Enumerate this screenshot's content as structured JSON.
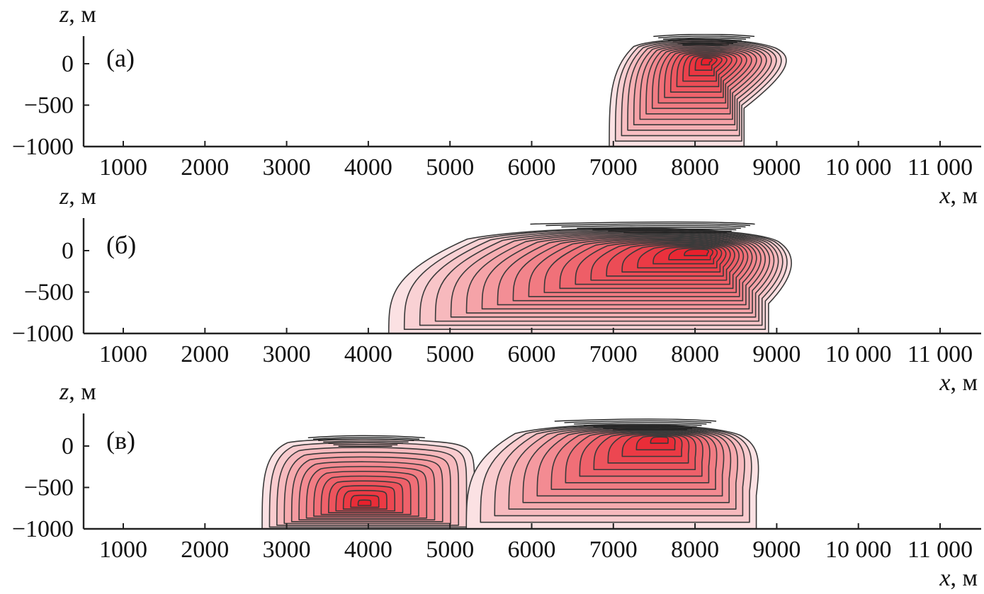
{
  "chart_data": [
    {
      "type": "contour",
      "panel_label": "(а)",
      "xlabel": "x, м",
      "ylabel": "z, м",
      "x_ticks": [
        "1000",
        "2000",
        "3000",
        "4000",
        "5000",
        "6000",
        "7000",
        "8000",
        "9000",
        "10 000",
        "11 000"
      ],
      "x_tick_values": [
        1000,
        2000,
        3000,
        4000,
        5000,
        6000,
        7000,
        8000,
        9000,
        10000,
        11000
      ],
      "y_ticks": [
        "0",
        "−500",
        "−1000"
      ],
      "y_tick_values": [
        0,
        -500,
        -1000
      ],
      "xlim": [
        500,
        11400
      ],
      "ylim": [
        -1000,
        360
      ],
      "colormap": [
        "#fbe1e3",
        "#e8202c"
      ],
      "contour_color": "#3a3a3a",
      "x_label_shown": true,
      "blobs": [
        {
          "cx": 8150,
          "cz": 50,
          "top": 330,
          "xl": 6950,
          "xr": 9200,
          "skew": 0.25,
          "x_left_bottom": 6950,
          "x_right_bottom": 8600,
          "n_levels": 16
        }
      ]
    },
    {
      "type": "contour",
      "panel_label": "(б)",
      "xlabel": "x, м",
      "ylabel": "z, м",
      "x_ticks": [
        "1000",
        "2000",
        "3000",
        "4000",
        "5000",
        "6000",
        "7000",
        "8000",
        "9000",
        "10 000",
        "11 000"
      ],
      "x_tick_values": [
        1000,
        2000,
        3000,
        4000,
        5000,
        6000,
        7000,
        8000,
        9000,
        10000,
        11000
      ],
      "y_ticks": [
        "0",
        "−500",
        "−1000"
      ],
      "y_tick_values": [
        0,
        -500,
        -1000
      ],
      "xlim": [
        500,
        11400
      ],
      "ylim": [
        -1000,
        360
      ],
      "colormap": [
        "#fbe1e3",
        "#e8202c"
      ],
      "contour_color": "#3a3a3a",
      "x_label_shown": true,
      "blobs": [
        {
          "cx": 8100,
          "cz": 0,
          "top": 320,
          "xl": 4250,
          "xr": 9250,
          "skew": 0.55,
          "x_left_bottom": 4250,
          "x_right_bottom": 8900,
          "n_levels": 20
        }
      ]
    },
    {
      "type": "contour",
      "panel_label": "(в)",
      "xlabel": "x, м",
      "ylabel": "z, м",
      "x_ticks": [
        "1000",
        "2000",
        "3000",
        "4000",
        "5000",
        "6000",
        "7000",
        "8000",
        "9000",
        "10 000",
        "11 000"
      ],
      "x_tick_values": [
        1000,
        2000,
        3000,
        4000,
        5000,
        6000,
        7000,
        8000,
        9000,
        10000,
        11000
      ],
      "y_ticks": [
        "0",
        "−500",
        "−1000"
      ],
      "y_tick_values": [
        0,
        -500,
        -1000
      ],
      "xlim": [
        500,
        11400
      ],
      "ylim": [
        -1000,
        360
      ],
      "colormap": [
        "#fbe1e3",
        "#e8202c"
      ],
      "contour_color": "#3a3a3a",
      "x_label_shown": true,
      "blobs": [
        {
          "cx": 3950,
          "cz": -700,
          "top": 100,
          "xl": 2700,
          "xr": 5300,
          "skew": 0.0,
          "x_left_bottom": 2700,
          "x_right_bottom": 5300,
          "n_levels": 14
        },
        {
          "cx": 7600,
          "cz": 100,
          "top": 300,
          "xl": 5200,
          "xr": 8800,
          "skew": 0.4,
          "x_left_bottom": 5200,
          "x_right_bottom": 8750,
          "n_levels": 14
        }
      ]
    }
  ]
}
